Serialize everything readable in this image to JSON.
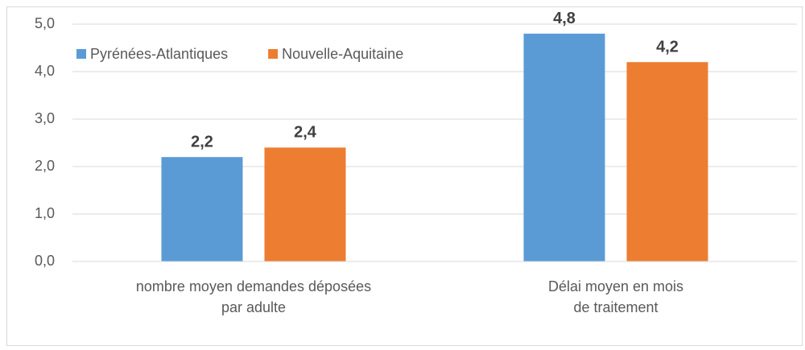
{
  "chart_data": {
    "type": "bar",
    "categories": [
      "nombre moyen demandes déposées\npar adulte",
      "Délai moyen en mois\nde traitement"
    ],
    "series": [
      {
        "name": "Pyrénées-Atlantiques",
        "color": "#5b9bd5",
        "values": [
          2.2,
          4.8
        ],
        "value_labels": [
          "2,2",
          "4,8"
        ]
      },
      {
        "name": "Nouvelle-Aquitaine",
        "color": "#ed7d31",
        "values": [
          2.4,
          4.2
        ],
        "value_labels": [
          "2,4",
          "4,2"
        ]
      }
    ],
    "ylim": [
      0,
      5
    ],
    "yticks": [
      {
        "value": 0,
        "label": "0,0"
      },
      {
        "value": 1,
        "label": "1,0"
      },
      {
        "value": 2,
        "label": "2,0"
      },
      {
        "value": 3,
        "label": "3,0"
      },
      {
        "value": 4,
        "label": "4,0"
      },
      {
        "value": 5,
        "label": "5,0"
      }
    ],
    "grid": true,
    "legend": "top-left"
  }
}
